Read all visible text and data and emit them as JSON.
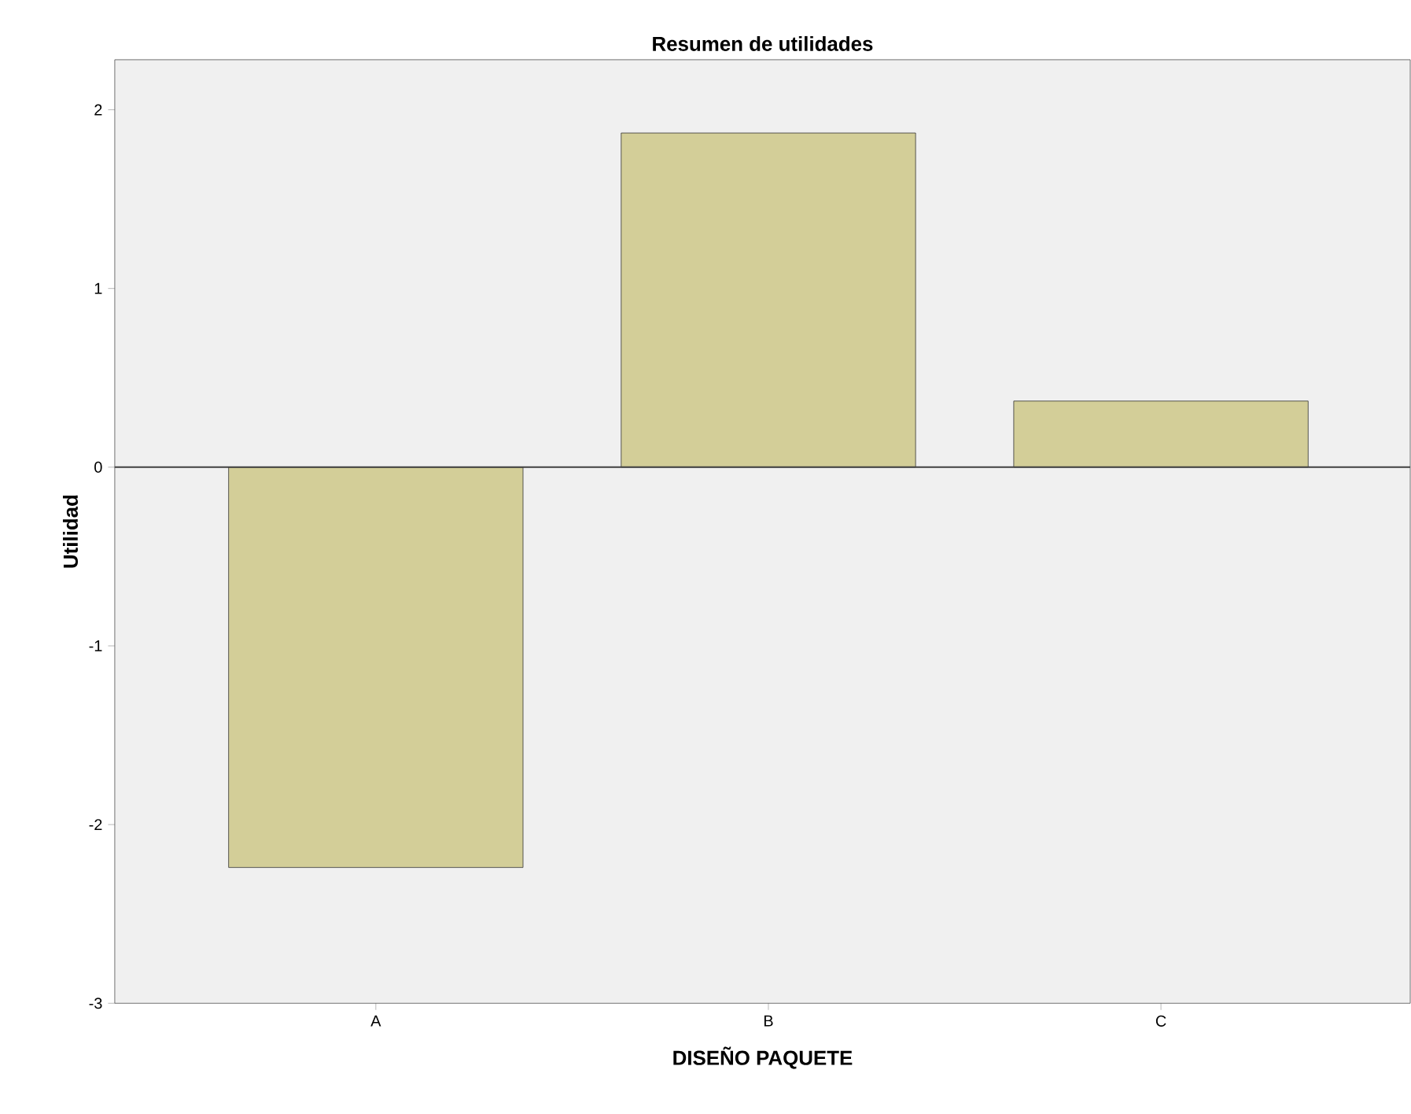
{
  "chart_data": {
    "type": "bar",
    "title": "Resumen de utilidades",
    "xlabel": "DISEÑO PAQUETE",
    "ylabel": "Utilidad",
    "categories": [
      "A",
      "B",
      "C"
    ],
    "values": [
      -2.24,
      1.87,
      0.37
    ],
    "color": "#d3ce98",
    "ylim": [
      -3,
      2.28
    ],
    "yticks": [
      -3,
      -2,
      -1,
      0,
      1,
      2
    ],
    "ref_lines": [
      {
        "axis": "y",
        "value": 0
      }
    ],
    "grid": false
  }
}
